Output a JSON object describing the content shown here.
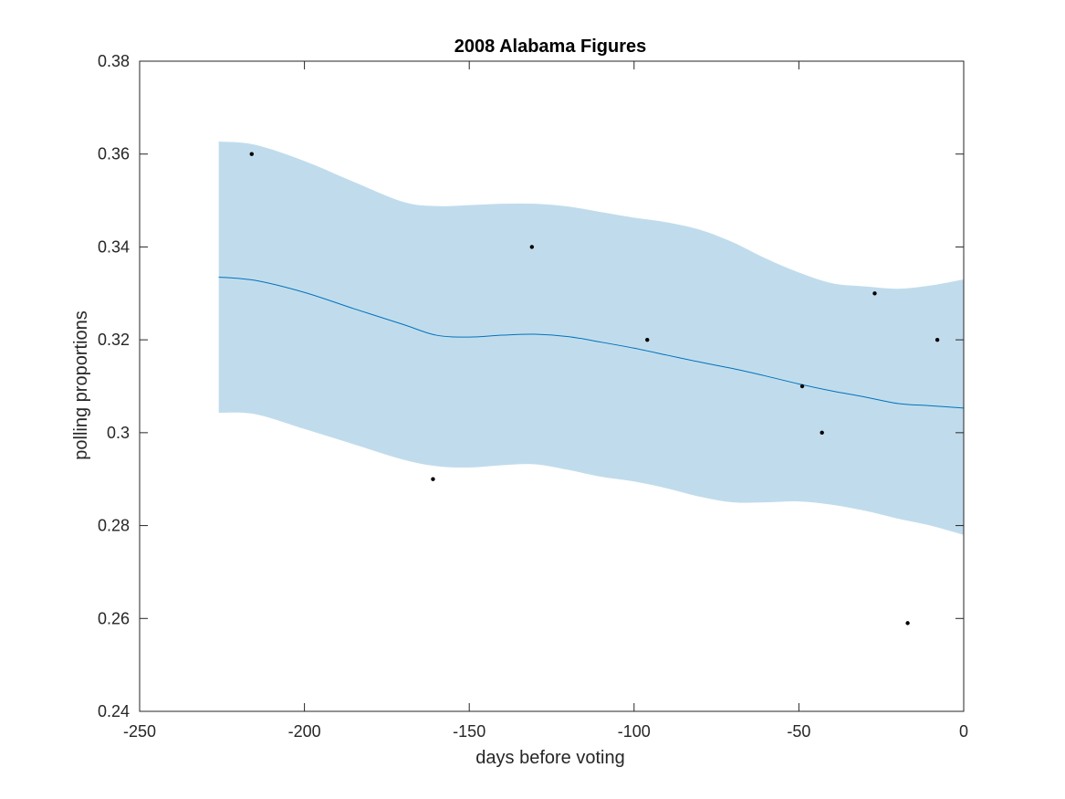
{
  "chart_data": {
    "type": "scatter",
    "title": "2008 Alabama Figures",
    "xlabel": "days before voting",
    "ylabel": "polling proportions",
    "xlim": [
      -250,
      0
    ],
    "ylim": [
      0.24,
      0.38
    ],
    "xticks": [
      -250,
      -200,
      -150,
      -100,
      -50,
      0
    ],
    "yticks": [
      0.24,
      0.26,
      0.28,
      0.3,
      0.32,
      0.34,
      0.36,
      0.38
    ],
    "xtick_labels": [
      "-250",
      "-200",
      "-150",
      "-100",
      "-50",
      "0"
    ],
    "ytick_labels": [
      "0.24",
      "0.26",
      "0.28",
      "0.3",
      "0.32",
      "0.34",
      "0.36",
      "0.38"
    ],
    "grid": false,
    "colors": {
      "band": "#c0dcec",
      "line": "#0072bd",
      "points": "#000000",
      "axes": "#262626"
    },
    "points": {
      "x": [
        -216,
        -161,
        -131,
        -96,
        -49,
        -43,
        -27,
        -17,
        -8
      ],
      "y": [
        0.36,
        0.29,
        0.34,
        0.32,
        0.31,
        0.3,
        0.33,
        0.259,
        0.32
      ]
    },
    "trend": {
      "x": [
        -226,
        -215,
        -200,
        -185,
        -170,
        -160,
        -150,
        -140,
        -130,
        -120,
        -110,
        -100,
        -90,
        -80,
        -70,
        -60,
        -50,
        -40,
        -30,
        -20,
        -10,
        0
      ],
      "y": [
        0.3335,
        0.3328,
        0.3302,
        0.3267,
        0.3233,
        0.321,
        0.3206,
        0.321,
        0.3212,
        0.3207,
        0.3195,
        0.3182,
        0.3167,
        0.3152,
        0.3138,
        0.3122,
        0.3105,
        0.309,
        0.3077,
        0.3063,
        0.3058,
        0.3053
      ]
    },
    "band": {
      "x": [
        -226,
        -215,
        -200,
        -185,
        -170,
        -160,
        -150,
        -140,
        -130,
        -120,
        -110,
        -100,
        -90,
        -80,
        -70,
        -60,
        -50,
        -40,
        -30,
        -20,
        -10,
        0
      ],
      "upper": [
        0.3627,
        0.362,
        0.3585,
        0.354,
        0.3497,
        0.3488,
        0.349,
        0.3493,
        0.3493,
        0.3487,
        0.3475,
        0.3463,
        0.3453,
        0.3437,
        0.341,
        0.3375,
        0.3345,
        0.3322,
        0.3315,
        0.331,
        0.3317,
        0.333
      ],
      "lower": [
        0.3043,
        0.304,
        0.3008,
        0.2975,
        0.2942,
        0.2928,
        0.2925,
        0.293,
        0.2932,
        0.292,
        0.2905,
        0.2895,
        0.288,
        0.2862,
        0.285,
        0.285,
        0.2852,
        0.2845,
        0.2832,
        0.2815,
        0.28,
        0.278
      ]
    }
  }
}
